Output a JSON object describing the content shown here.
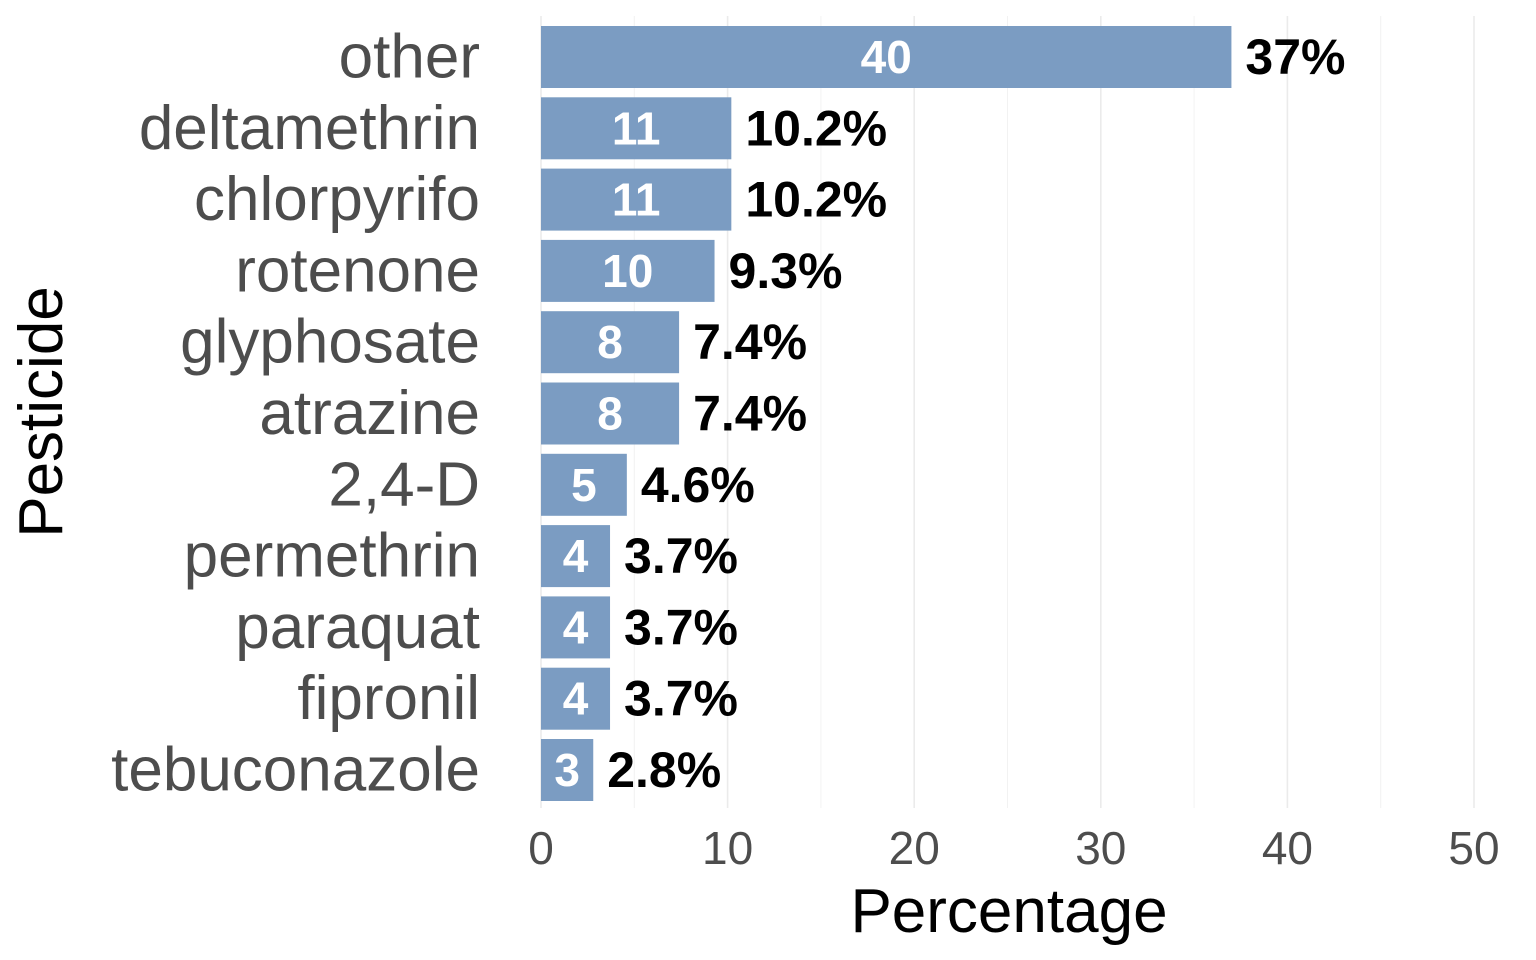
{
  "chart_data": {
    "type": "bar",
    "orientation": "horizontal",
    "xlabel": "Percentage",
    "ylabel": "Pesticide",
    "xlim": [
      0,
      50
    ],
    "x_ticks": [
      0,
      10,
      20,
      30,
      40,
      50
    ],
    "grid": "vertical",
    "bar_color": "#7b9cc2",
    "categories": [
      "other",
      "deltamethrin",
      "chlorpyrifo",
      "rotenone",
      "glyphosate",
      "atrazine",
      "2,4-D",
      "permethrin",
      "paraquat",
      "fipronil",
      "tebuconazole"
    ],
    "counts": [
      40,
      11,
      11,
      10,
      8,
      8,
      5,
      4,
      4,
      4,
      3
    ],
    "values": [
      37,
      10.2,
      10.2,
      9.3,
      7.4,
      7.4,
      4.6,
      3.7,
      3.7,
      3.7,
      2.8
    ],
    "percent_labels": [
      "37%",
      "10.2%",
      "10.2%",
      "9.3%",
      "7.4%",
      "7.4%",
      "4.6%",
      "3.7%",
      "3.7%",
      "3.7%",
      "2.8%"
    ]
  }
}
